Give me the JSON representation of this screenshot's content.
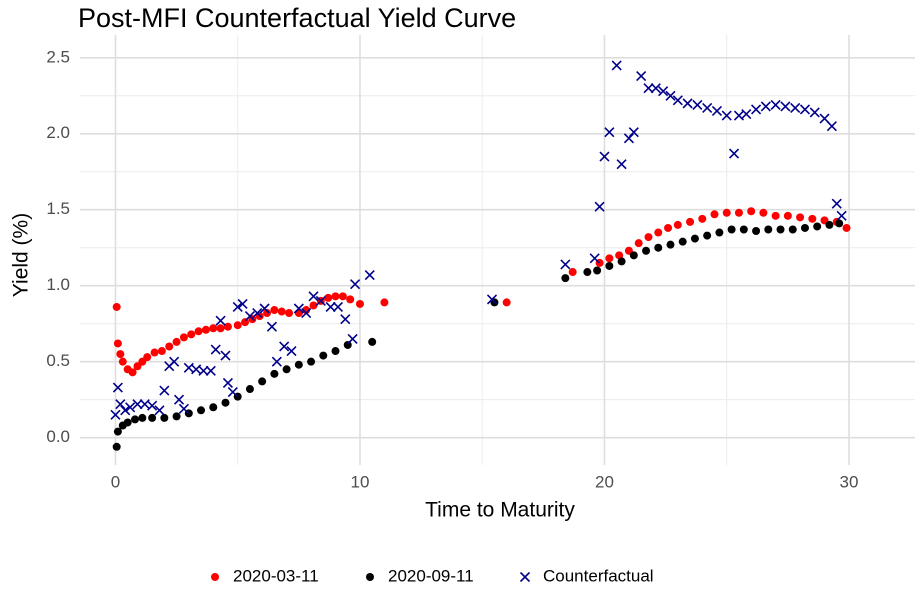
{
  "chart_data": {
    "type": "scatter",
    "title": "Post-MFI Counterfactual Yield Curve",
    "x_label": "Time to Maturity",
    "y_label": "Yield (%)",
    "xlim": [
      -1.45,
      32.7
    ],
    "ylim": [
      -0.18,
      2.65
    ],
    "xticks": [
      0,
      10,
      20,
      30
    ],
    "yticks": [
      {
        "value": 0,
        "label": "0.0"
      },
      0.5,
      {
        "value": 1,
        "label": "1.0"
      },
      1.5,
      {
        "value": 2,
        "label": "2.0"
      },
      2.5
    ],
    "grid": true,
    "legend": "bottom",
    "series": [
      {
        "name": "2020-03-11",
        "color": "#ff0000",
        "marker": "circle",
        "x": [
          0.05,
          0.1,
          0.2,
          0.3,
          0.5,
          0.7,
          0.9,
          1.1,
          1.3,
          1.6,
          1.9,
          2.2,
          2.5,
          2.8,
          3.1,
          3.4,
          3.7,
          4.0,
          4.3,
          4.6,
          5.0,
          5.3,
          5.6,
          5.9,
          6.2,
          6.5,
          6.8,
          7.1,
          7.5,
          7.8,
          8.1,
          8.4,
          8.7,
          9.0,
          9.3,
          9.6,
          10.0,
          11.0,
          16.0,
          18.7,
          19.8,
          20.2,
          20.6,
          21.0,
          21.4,
          21.8,
          22.2,
          22.6,
          23.0,
          23.5,
          24.0,
          24.5,
          25.0,
          25.5,
          26.0,
          26.5,
          27.0,
          27.5,
          28.0,
          28.5,
          29.0,
          29.5,
          29.9
        ],
        "values": [
          0.86,
          0.62,
          0.55,
          0.5,
          0.45,
          0.43,
          0.47,
          0.5,
          0.53,
          0.56,
          0.57,
          0.6,
          0.63,
          0.66,
          0.68,
          0.7,
          0.71,
          0.72,
          0.72,
          0.73,
          0.74,
          0.76,
          0.78,
          0.8,
          0.82,
          0.84,
          0.83,
          0.82,
          0.82,
          0.84,
          0.87,
          0.9,
          0.92,
          0.93,
          0.93,
          0.91,
          0.88,
          0.89,
          0.89,
          1.09,
          1.15,
          1.18,
          1.2,
          1.23,
          1.28,
          1.32,
          1.35,
          1.38,
          1.4,
          1.42,
          1.44,
          1.47,
          1.48,
          1.48,
          1.49,
          1.48,
          1.46,
          1.46,
          1.45,
          1.44,
          1.43,
          1.42,
          1.38
        ]
      },
      {
        "name": "2020-09-11",
        "color": "#000000",
        "marker": "circle",
        "x": [
          0.05,
          0.1,
          0.3,
          0.5,
          0.8,
          1.1,
          1.5,
          2.0,
          2.5,
          3.0,
          3.5,
          4.0,
          4.5,
          5.0,
          5.5,
          6.0,
          6.5,
          7.0,
          7.5,
          8.0,
          8.5,
          9.0,
          9.5,
          10.5,
          15.5,
          18.4,
          19.3,
          19.7,
          20.2,
          20.7,
          21.2,
          21.7,
          22.2,
          22.7,
          23.2,
          23.7,
          24.2,
          24.7,
          25.2,
          25.7,
          26.2,
          26.7,
          27.2,
          27.7,
          28.2,
          28.7,
          29.2,
          29.6
        ],
        "values": [
          -0.06,
          0.04,
          0.08,
          0.1,
          0.12,
          0.13,
          0.13,
          0.13,
          0.14,
          0.16,
          0.18,
          0.2,
          0.23,
          0.27,
          0.32,
          0.37,
          0.42,
          0.45,
          0.48,
          0.5,
          0.54,
          0.57,
          0.61,
          0.63,
          0.89,
          1.05,
          1.09,
          1.1,
          1.13,
          1.16,
          1.2,
          1.23,
          1.25,
          1.27,
          1.29,
          1.31,
          1.33,
          1.35,
          1.37,
          1.37,
          1.36,
          1.37,
          1.37,
          1.37,
          1.38,
          1.39,
          1.4,
          1.41
        ]
      },
      {
        "name": "Counterfactual",
        "color": "#00008b",
        "marker": "cross",
        "x": [
          0.0,
          0.1,
          0.2,
          0.4,
          0.6,
          0.9,
          1.2,
          1.5,
          1.8,
          2.0,
          2.2,
          2.4,
          2.6,
          2.8,
          3.0,
          3.3,
          3.6,
          3.9,
          4.1,
          4.3,
          4.5,
          4.6,
          4.8,
          5.0,
          5.2,
          5.5,
          5.8,
          6.1,
          6.4,
          6.6,
          6.9,
          7.2,
          7.5,
          7.8,
          8.1,
          8.4,
          8.8,
          9.1,
          9.4,
          9.7,
          9.8,
          10.4,
          15.4,
          18.4,
          19.6,
          19.8,
          20.0,
          20.2,
          20.5,
          20.7,
          21.0,
          21.2,
          21.5,
          21.8,
          22.1,
          22.4,
          22.7,
          23.0,
          23.4,
          23.8,
          24.2,
          24.6,
          25.0,
          25.3,
          25.5,
          25.8,
          26.2,
          26.6,
          27.0,
          27.4,
          27.8,
          28.2,
          28.6,
          29.0,
          29.3,
          29.5,
          29.7
        ],
        "values": [
          0.15,
          0.33,
          0.22,
          0.18,
          0.2,
          0.22,
          0.22,
          0.21,
          0.18,
          0.31,
          0.47,
          0.5,
          0.25,
          0.19,
          0.46,
          0.45,
          0.44,
          0.44,
          0.58,
          0.77,
          0.54,
          0.36,
          0.3,
          0.86,
          0.88,
          0.8,
          0.82,
          0.85,
          0.73,
          0.5,
          0.6,
          0.57,
          0.85,
          0.82,
          0.93,
          0.9,
          0.86,
          0.86,
          0.78,
          0.65,
          1.01,
          1.07,
          0.91,
          1.14,
          1.18,
          1.52,
          1.85,
          2.01,
          2.45,
          1.8,
          1.97,
          2.01,
          2.38,
          2.3,
          2.3,
          2.28,
          2.25,
          2.22,
          2.2,
          2.19,
          2.17,
          2.15,
          2.12,
          1.87,
          2.12,
          2.13,
          2.16,
          2.18,
          2.19,
          2.18,
          2.17,
          2.16,
          2.14,
          2.1,
          2.05,
          1.54,
          1.46
        ]
      }
    ]
  }
}
